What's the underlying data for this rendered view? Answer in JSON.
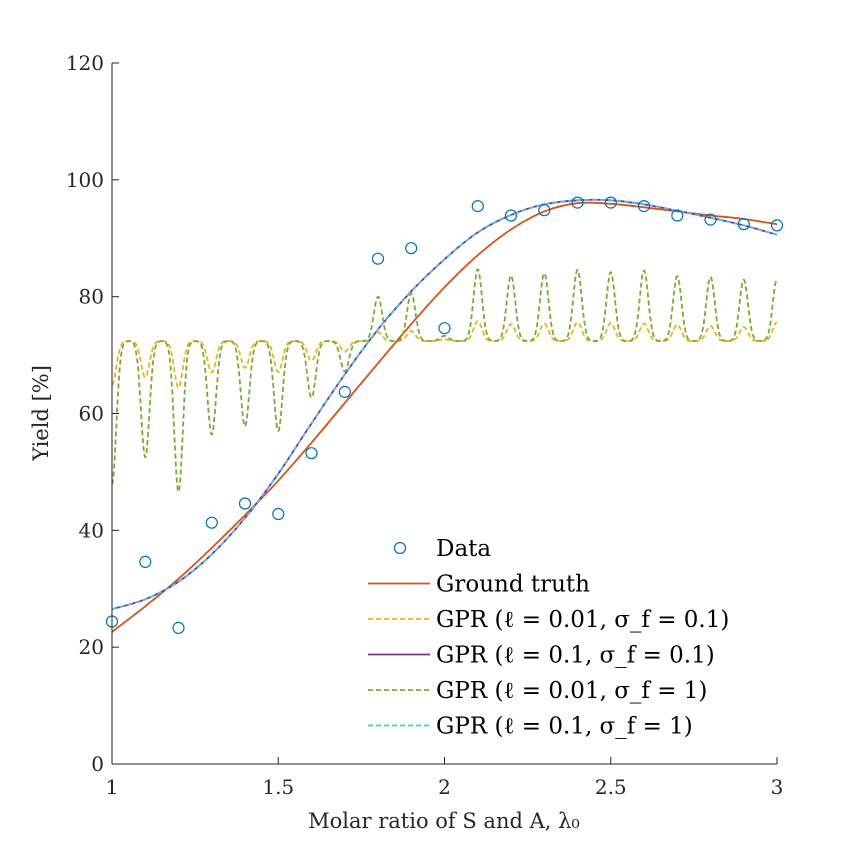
{
  "chart_data": {
    "type": "line",
    "xlabel": "Molar ratio of S and A, λ₀",
    "ylabel": "Yield [%]",
    "xlim": [
      1,
      3
    ],
    "ylim": [
      0,
      120
    ],
    "xticks": [
      1,
      1.5,
      2,
      2.5,
      3
    ],
    "xtick_labels": [
      "1",
      "1.5",
      "2",
      "2.5",
      "3"
    ],
    "yticks": [
      0,
      20,
      40,
      60,
      80,
      100,
      120
    ],
    "ytick_labels": [
      "0",
      "20",
      "40",
      "60",
      "80",
      "100",
      "120"
    ],
    "grid": false,
    "legend_position": "bottom-right",
    "legend": [
      {
        "label": "Data",
        "style": "marker",
        "color": "#0072BD"
      },
      {
        "label": "Ground truth",
        "style": "solid",
        "color": "#D95319"
      },
      {
        "label": "GPR (ℓ = 0.01, σ_f = 0.1)",
        "style": "dashed",
        "color": "#EDB120"
      },
      {
        "label": "GPR (ℓ = 0.1, σ_f = 0.1)",
        "style": "solid",
        "color": "#7E2F8E"
      },
      {
        "label": "GPR (ℓ = 0.01, σ_f = 1)",
        "style": "dashed",
        "color": "#77AC30"
      },
      {
        "label": "GPR (ℓ = 0.1, σ_f = 1)",
        "style": "dashed",
        "color": "#4DBEEE"
      }
    ],
    "series": [
      {
        "name": "Data",
        "kind": "scatter",
        "color": "#0072BD",
        "x": [
          1.0,
          1.1,
          1.2,
          1.3,
          1.4,
          1.5,
          1.6,
          1.7,
          1.8,
          1.9,
          2.0,
          2.1,
          2.2,
          2.3,
          2.4,
          2.5,
          2.6,
          2.7,
          2.8,
          2.9,
          3.0
        ],
        "y": [
          24.4,
          34.6,
          23.3,
          41.3,
          44.6,
          42.8,
          53.2,
          63.7,
          86.5,
          88.3,
          74.6,
          95.5,
          93.9,
          94.8,
          96.1,
          96.1,
          95.5,
          93.9,
          93.2,
          92.4,
          92.2
        ]
      },
      {
        "name": "Ground truth",
        "kind": "line",
        "color": "#D95319",
        "x": [
          1.0,
          1.1,
          1.2,
          1.3,
          1.4,
          1.5,
          1.6,
          1.7,
          1.8,
          1.9,
          2.0,
          2.1,
          2.2,
          2.3,
          2.4,
          2.5,
          2.6,
          2.7,
          2.8,
          2.9,
          3.0
        ],
        "y": [
          22.6,
          27.0,
          31.7,
          37.0,
          42.6,
          48.5,
          55.0,
          61.8,
          68.6,
          75.3,
          81.6,
          87.1,
          91.5,
          94.6,
          96.0,
          95.9,
          95.3,
          94.6,
          93.9,
          93.3,
          92.4
        ]
      },
      {
        "name": "GPR (ℓ = 0.1, σ_f = 0.1)",
        "kind": "line",
        "color": "#7E2F8E",
        "x": [
          1.0,
          1.1,
          1.2,
          1.3,
          1.4,
          1.5,
          1.6,
          1.7,
          1.8,
          1.9,
          2.0,
          2.1,
          2.2,
          2.3,
          2.4,
          2.5,
          2.6,
          2.7,
          2.8,
          2.9,
          3.0
        ],
        "y": [
          26.5,
          28.2,
          31.2,
          35.9,
          42.1,
          49.7,
          58.3,
          66.7,
          74.4,
          80.9,
          86.4,
          91.0,
          94.0,
          95.8,
          96.5,
          96.5,
          95.8,
          94.7,
          93.5,
          92.2,
          90.6
        ]
      },
      {
        "name": "GPR (ℓ = 0.1, σ_f = 1)",
        "kind": "line",
        "color": "#4DBEEE",
        "x": [
          1.0,
          1.1,
          1.2,
          1.3,
          1.4,
          1.5,
          1.6,
          1.7,
          1.8,
          1.9,
          2.0,
          2.1,
          2.2,
          2.3,
          2.4,
          2.5,
          2.6,
          2.7,
          2.8,
          2.9,
          3.0
        ],
        "y": [
          26.5,
          28.2,
          31.2,
          35.9,
          42.1,
          49.7,
          58.3,
          66.7,
          74.4,
          80.9,
          86.4,
          91.0,
          94.0,
          95.8,
          96.5,
          96.5,
          95.8,
          94.7,
          93.5,
          92.2,
          90.6
        ]
      },
      {
        "name": "GPR (ℓ = 0.01, σ_f = 0.1)",
        "kind": "dip-line",
        "color": "#EDB120",
        "baseline": 72.4,
        "x": [
          1.0,
          1.1,
          1.2,
          1.3,
          1.4,
          1.5,
          1.6,
          1.7,
          1.8,
          1.9,
          2.0,
          2.1,
          2.2,
          2.3,
          2.4,
          2.5,
          2.6,
          2.7,
          2.8,
          2.9,
          3.0
        ],
        "y": [
          64.9,
          66.2,
          64.4,
          67.0,
          67.8,
          67.1,
          69.0,
          70.6,
          73.9,
          74.1,
          72.7,
          75.8,
          75.3,
          75.4,
          75.6,
          75.5,
          75.4,
          75.2,
          75.0,
          74.8,
          75.6
        ]
      },
      {
        "name": "GPR (ℓ = 0.01, σ_f = 1)",
        "kind": "dip-line",
        "color": "#77AC30",
        "baseline": 72.4,
        "x": [
          1.0,
          1.1,
          1.2,
          1.3,
          1.4,
          1.5,
          1.6,
          1.7,
          1.8,
          1.9,
          2.0,
          2.1,
          2.2,
          2.3,
          2.4,
          2.5,
          2.6,
          2.7,
          2.8,
          2.9,
          3.0
        ],
        "y": [
          47.9,
          52.5,
          46.6,
          56.4,
          57.8,
          57.0,
          62.7,
          67.2,
          80.0,
          80.6,
          73.3,
          84.7,
          83.6,
          84.0,
          84.6,
          84.2,
          84.5,
          83.5,
          83.4,
          82.9,
          83.0
        ]
      }
    ]
  }
}
